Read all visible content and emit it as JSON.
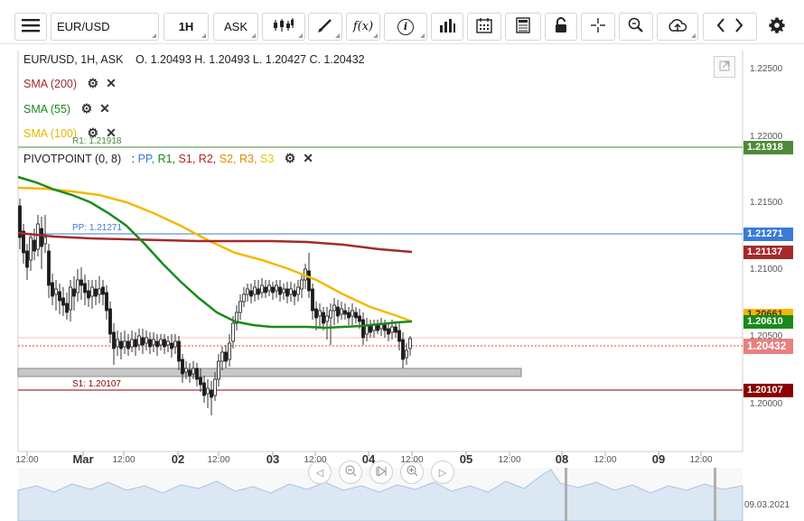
{
  "toolbar": {
    "symbol": "EUR/USD",
    "timeframe": "1H",
    "price_type": "ASK",
    "formula_label": "f(x)",
    "info_label": "i"
  },
  "chart": {
    "header": "EUR/USD, 1H, ASK",
    "ohlc": "O. 1.20493 H. 1.20493 L. 1.20427 C. 1.20432",
    "indicators": [
      {
        "label": "SMA (200)",
        "color": "#a52a2a"
      },
      {
        "label": "SMA (55)",
        "color": "#1a8a1a"
      },
      {
        "label": "SMA (100)",
        "color": "#e6b800"
      }
    ],
    "pivot": {
      "label": "PIVOTPOINT (0, 8)",
      "prefix": ":",
      "items": [
        {
          "label": "PP,",
          "color": "#3a7bd5"
        },
        {
          "label": "R1,",
          "color": "#1a8a1a"
        },
        {
          "label": "S1,",
          "color": "#b22222"
        },
        {
          "label": "R2,",
          "color": "#b22222"
        },
        {
          "label": "S2,",
          "color": "#e08a00"
        },
        {
          "label": "R3,",
          "color": "#e08a00"
        },
        {
          "label": "S3",
          "color": "#e6c800"
        }
      ]
    },
    "levels": {
      "r1": "R1: 1.21918",
      "pp": "PP: 1.21271",
      "s1": "S1: 1.20107"
    },
    "y_axis": [
      "1.22500",
      "1.22000",
      "1.21500",
      "1.21000",
      "1.20500",
      "1.20000"
    ],
    "price_tags": {
      "r1": "1.21918",
      "pp": "1.21271",
      "sma200": "1.21137",
      "sma100": "1.20661",
      "sma55": "1.20610",
      "last": "1.20432",
      "s1": "1.20107"
    },
    "x_axis": [
      {
        "label": "12:00",
        "bold": false
      },
      {
        "label": "Mar",
        "bold": true
      },
      {
        "label": "12:00",
        "bold": false
      },
      {
        "label": "02",
        "bold": true
      },
      {
        "label": "12:00",
        "bold": false
      },
      {
        "label": "03",
        "bold": true
      },
      {
        "label": "12:00",
        "bold": false
      },
      {
        "label": "04",
        "bold": true
      },
      {
        "label": "12:00",
        "bold": false
      },
      {
        "label": "05",
        "bold": true
      },
      {
        "label": "12:00",
        "bold": false
      },
      {
        "label": "08",
        "bold": true
      },
      {
        "label": "12:00",
        "bold": false
      },
      {
        "label": "09",
        "bold": true
      },
      {
        "label": "12:00",
        "bold": false
      }
    ],
    "date_label": "09.03.2021",
    "colors": {
      "sma200": "#a52a2a",
      "sma55": "#1a8a1a",
      "sma100": "#f5b800",
      "r1": "#4e8a3a",
      "pp": "#3a7bd5",
      "s1": "#8b0000",
      "last": "#e04040"
    }
  }
}
